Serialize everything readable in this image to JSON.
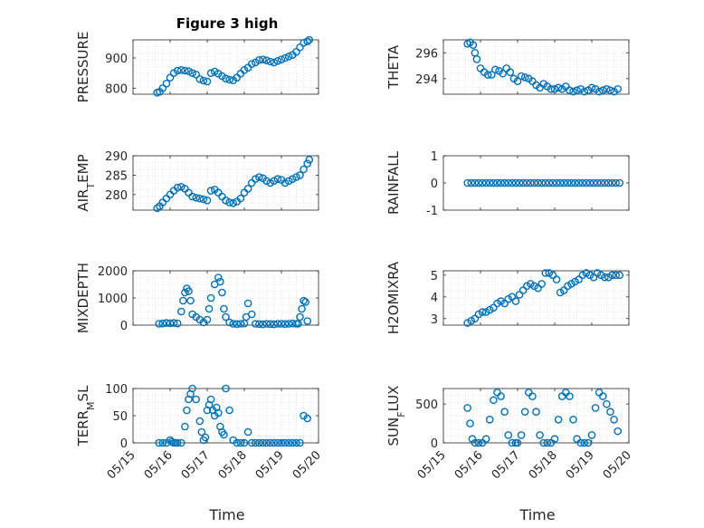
{
  "figure": {
    "title": "Figure 3 high",
    "marker_color": "#0072BD",
    "x_tick_labels": [
      "05/15",
      "05/16",
      "05/17",
      "05/18",
      "05/19",
      "05/20"
    ],
    "xlabel": "Time"
  },
  "chart_data": [
    {
      "type": "scatter",
      "ylabel": "PRESSURE",
      "xlim": [
        0,
        5
      ],
      "ylim": [
        780,
        960
      ],
      "yticks": [
        800,
        900
      ],
      "grid": true,
      "x": [
        0.65,
        0.72,
        0.8,
        0.9,
        1.0,
        1.1,
        1.2,
        1.3,
        1.4,
        1.5,
        1.6,
        1.7,
        1.8,
        1.9,
        2.0,
        2.1,
        2.2,
        2.3,
        2.4,
        2.5,
        2.6,
        2.7,
        2.8,
        2.9,
        3.0,
        3.1,
        3.2,
        3.3,
        3.4,
        3.5,
        3.6,
        3.7,
        3.8,
        3.9,
        4.0,
        4.1,
        4.2,
        4.3,
        4.4,
        4.5,
        4.6,
        4.7,
        4.75
      ],
      "values": [
        785,
        788,
        800,
        815,
        835,
        850,
        858,
        860,
        858,
        856,
        850,
        845,
        830,
        825,
        822,
        850,
        855,
        848,
        840,
        832,
        828,
        826,
        835,
        848,
        860,
        868,
        880,
        885,
        893,
        895,
        892,
        888,
        885,
        890,
        895,
        900,
        905,
        910,
        920,
        935,
        950,
        955,
        960
      ]
    },
    {
      "type": "scatter",
      "ylabel": "THETA",
      "xlim": [
        0,
        5
      ],
      "ylim": [
        292.8,
        297
      ],
      "yticks": [
        294,
        296
      ],
      "grid": true,
      "x": [
        0.65,
        0.72,
        0.8,
        0.85,
        0.9,
        1.0,
        1.1,
        1.2,
        1.3,
        1.4,
        1.5,
        1.6,
        1.7,
        1.8,
        1.9,
        2.0,
        2.1,
        2.2,
        2.3,
        2.4,
        2.5,
        2.6,
        2.7,
        2.8,
        2.9,
        3.0,
        3.1,
        3.2,
        3.3,
        3.4,
        3.5,
        3.6,
        3.7,
        3.8,
        3.9,
        4.0,
        4.1,
        4.2,
        4.3,
        4.4,
        4.5,
        4.6,
        4.7
      ],
      "values": [
        296.7,
        296.8,
        296.6,
        296.0,
        295.5,
        294.8,
        294.5,
        294.3,
        294.3,
        294.7,
        294.6,
        294.4,
        294.8,
        294.5,
        294.0,
        293.8,
        294.2,
        294.1,
        294.0,
        293.8,
        293.5,
        293.3,
        293.6,
        293.4,
        293.2,
        293.2,
        293.3,
        293.2,
        293.4,
        293.1,
        293.0,
        293.1,
        293.2,
        293.0,
        293.1,
        293.3,
        293.2,
        293.0,
        293.1,
        293.2,
        293.1,
        293.0,
        293.2
      ]
    },
    {
      "type": "scatter",
      "ylabel": "AIR_TEMP",
      "xlim": [
        0,
        5
      ],
      "ylim": [
        276,
        290
      ],
      "yticks": [
        280,
        285,
        290
      ],
      "grid": true,
      "x": [
        0.65,
        0.72,
        0.8,
        0.9,
        1.0,
        1.1,
        1.2,
        1.3,
        1.4,
        1.5,
        1.6,
        1.7,
        1.8,
        1.9,
        2.0,
        2.1,
        2.2,
        2.3,
        2.4,
        2.5,
        2.6,
        2.7,
        2.8,
        2.9,
        3.0,
        3.1,
        3.2,
        3.3,
        3.4,
        3.5,
        3.6,
        3.7,
        3.8,
        3.9,
        4.0,
        4.1,
        4.2,
        4.3,
        4.4,
        4.5,
        4.6,
        4.7,
        4.75
      ],
      "values": [
        276.5,
        277.0,
        278.0,
        279.0,
        280.0,
        281.0,
        281.8,
        282.0,
        281.5,
        280.5,
        279.5,
        279.2,
        279.0,
        278.8,
        278.5,
        281.0,
        281.3,
        280.5,
        279.5,
        278.5,
        278.0,
        277.8,
        278.2,
        279.0,
        280.5,
        281.5,
        283.0,
        284.0,
        284.5,
        284.2,
        283.5,
        283.0,
        283.5,
        284.0,
        283.8,
        283.0,
        283.5,
        284.0,
        284.5,
        285.0,
        286.5,
        288.0,
        289.0
      ]
    },
    {
      "type": "scatter",
      "ylabel": "RAINFALL",
      "xlim": [
        0,
        5
      ],
      "ylim": [
        -1,
        1
      ],
      "yticks": [
        -1,
        0,
        1
      ],
      "grid": false,
      "x": [
        0.65,
        0.75,
        0.85,
        0.95,
        1.05,
        1.15,
        1.25,
        1.35,
        1.45,
        1.55,
        1.65,
        1.75,
        1.85,
        1.95,
        2.05,
        2.15,
        2.25,
        2.35,
        2.45,
        2.55,
        2.65,
        2.75,
        2.85,
        2.95,
        3.05,
        3.15,
        3.25,
        3.35,
        3.45,
        3.55,
        3.65,
        3.75,
        3.85,
        3.95,
        4.05,
        4.15,
        4.25,
        4.35,
        4.45,
        4.55,
        4.65,
        4.75
      ],
      "values": [
        0,
        0,
        0,
        0,
        0,
        0,
        0,
        0,
        0,
        0,
        0,
        0,
        0,
        0,
        0,
        0,
        0,
        0,
        0,
        0,
        0,
        0,
        0,
        0,
        0,
        0,
        0,
        0,
        0,
        0,
        0,
        0,
        0,
        0,
        0,
        0,
        0,
        0,
        0,
        0,
        0,
        0
      ]
    },
    {
      "type": "scatter",
      "ylabel": "MIXDEPTH",
      "xlim": [
        0,
        5
      ],
      "ylim": [
        0,
        2000
      ],
      "yticks": [
        0,
        1000,
        2000
      ],
      "grid": true,
      "x": [
        0.7,
        0.8,
        0.9,
        1.0,
        1.1,
        1.2,
        1.3,
        1.35,
        1.4,
        1.45,
        1.5,
        1.55,
        1.6,
        1.7,
        1.8,
        1.9,
        2.0,
        2.05,
        2.1,
        2.2,
        2.3,
        2.35,
        2.4,
        2.45,
        2.5,
        2.6,
        2.7,
        2.8,
        2.9,
        3.0,
        3.05,
        3.1,
        3.2,
        3.3,
        3.4,
        3.5,
        3.6,
        3.7,
        3.8,
        3.9,
        4.0,
        4.1,
        4.2,
        4.3,
        4.4,
        4.45,
        4.5,
        4.55,
        4.6,
        4.65,
        4.7
      ],
      "values": [
        50,
        60,
        80,
        70,
        80,
        60,
        500,
        900,
        1200,
        1350,
        1250,
        900,
        400,
        300,
        200,
        100,
        200,
        600,
        1000,
        1500,
        1750,
        1600,
        1200,
        600,
        300,
        100,
        50,
        40,
        50,
        60,
        300,
        800,
        400,
        50,
        40,
        30,
        50,
        40,
        30,
        50,
        50,
        40,
        50,
        60,
        50,
        50,
        300,
        600,
        900,
        850,
        150
      ]
    },
    {
      "type": "scatter",
      "ylabel": "H2OMIXRA",
      "xlim": [
        0,
        5
      ],
      "ylim": [
        2.7,
        5.2
      ],
      "yticks": [
        3,
        4,
        5
      ],
      "grid": true,
      "x": [
        0.65,
        0.75,
        0.85,
        0.95,
        1.05,
        1.15,
        1.25,
        1.35,
        1.45,
        1.55,
        1.65,
        1.75,
        1.85,
        1.95,
        2.05,
        2.15,
        2.25,
        2.35,
        2.45,
        2.55,
        2.65,
        2.75,
        2.85,
        2.95,
        3.05,
        3.15,
        3.25,
        3.35,
        3.45,
        3.55,
        3.65,
        3.75,
        3.85,
        3.95,
        4.05,
        4.15,
        4.25,
        4.35,
        4.45,
        4.55,
        4.65,
        4.75
      ],
      "values": [
        2.8,
        2.9,
        3.0,
        3.2,
        3.3,
        3.3,
        3.4,
        3.5,
        3.7,
        3.8,
        3.7,
        3.9,
        4.0,
        3.8,
        4.1,
        4.3,
        4.5,
        4.6,
        4.5,
        4.4,
        4.6,
        5.1,
        5.1,
        5.0,
        4.8,
        4.2,
        4.3,
        4.5,
        4.6,
        4.7,
        4.8,
        5.0,
        5.1,
        5.0,
        4.9,
        5.1,
        5.0,
        4.9,
        4.9,
        5.0,
        5.0,
        5.0
      ]
    },
    {
      "type": "scatter",
      "ylabel": "TERR_MSL",
      "xlim": [
        0,
        5
      ],
      "ylim": [
        0,
        100
      ],
      "yticks": [
        0,
        50,
        100
      ],
      "grid": true,
      "x": [
        0.7,
        0.8,
        0.9,
        1.0,
        1.05,
        1.1,
        1.15,
        1.2,
        1.3,
        1.4,
        1.45,
        1.5,
        1.55,
        1.6,
        1.7,
        1.8,
        1.85,
        1.9,
        1.95,
        2.0,
        2.05,
        2.1,
        2.15,
        2.2,
        2.25,
        2.3,
        2.35,
        2.4,
        2.45,
        2.5,
        2.6,
        2.7,
        2.8,
        2.9,
        3.0,
        3.1,
        3.2,
        3.3,
        3.4,
        3.5,
        3.6,
        3.7,
        3.8,
        3.9,
        4.0,
        4.1,
        4.2,
        4.3,
        4.4,
        4.5,
        4.6,
        4.7
      ],
      "values": [
        0,
        0,
        0,
        5,
        2,
        0,
        0,
        0,
        0,
        30,
        60,
        80,
        90,
        100,
        80,
        40,
        20,
        5,
        10,
        60,
        70,
        80,
        60,
        50,
        65,
        55,
        30,
        20,
        15,
        100,
        60,
        5,
        0,
        0,
        0,
        20,
        0,
        0,
        0,
        0,
        0,
        0,
        0,
        0,
        0,
        0,
        0,
        0,
        0,
        0,
        50,
        45
      ]
    },
    {
      "type": "scatter",
      "ylabel": "SUN_FLUX",
      "xlim": [
        0,
        5
      ],
      "ylim": [
        0,
        700
      ],
      "yticks": [
        0,
        500
      ],
      "grid": true,
      "x": [
        0.65,
        0.72,
        0.78,
        0.85,
        0.95,
        1.05,
        1.15,
        1.25,
        1.35,
        1.45,
        1.55,
        1.65,
        1.75,
        1.85,
        1.95,
        2.0,
        2.1,
        2.2,
        2.3,
        2.4,
        2.5,
        2.6,
        2.7,
        2.8,
        2.9,
        3.0,
        3.1,
        3.2,
        3.3,
        3.4,
        3.5,
        3.6,
        3.7,
        3.8,
        3.9,
        4.0,
        4.1,
        4.2,
        4.3,
        4.4,
        4.5,
        4.6,
        4.7
      ],
      "values": [
        450,
        250,
        50,
        0,
        0,
        0,
        50,
        300,
        550,
        650,
        600,
        400,
        100,
        0,
        0,
        0,
        100,
        400,
        650,
        600,
        400,
        100,
        0,
        0,
        0,
        50,
        300,
        600,
        650,
        600,
        300,
        50,
        0,
        0,
        0,
        100,
        450,
        650,
        600,
        500,
        400,
        300,
        150
      ]
    }
  ]
}
